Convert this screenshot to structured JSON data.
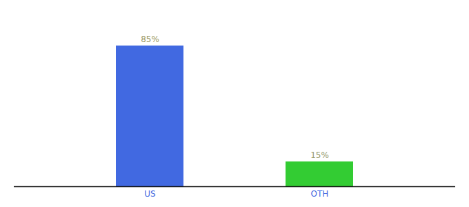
{
  "chart_data": {
    "type": "bar",
    "categories": [
      "US",
      "OTH"
    ],
    "values": [
      85,
      15
    ],
    "value_labels": [
      "85%",
      "15%"
    ],
    "colors": [
      "#4169e1",
      "#33cc33"
    ],
    "ylim": [
      0,
      100
    ],
    "data_labels": true,
    "tick_labels": "x",
    "grid": false
  }
}
